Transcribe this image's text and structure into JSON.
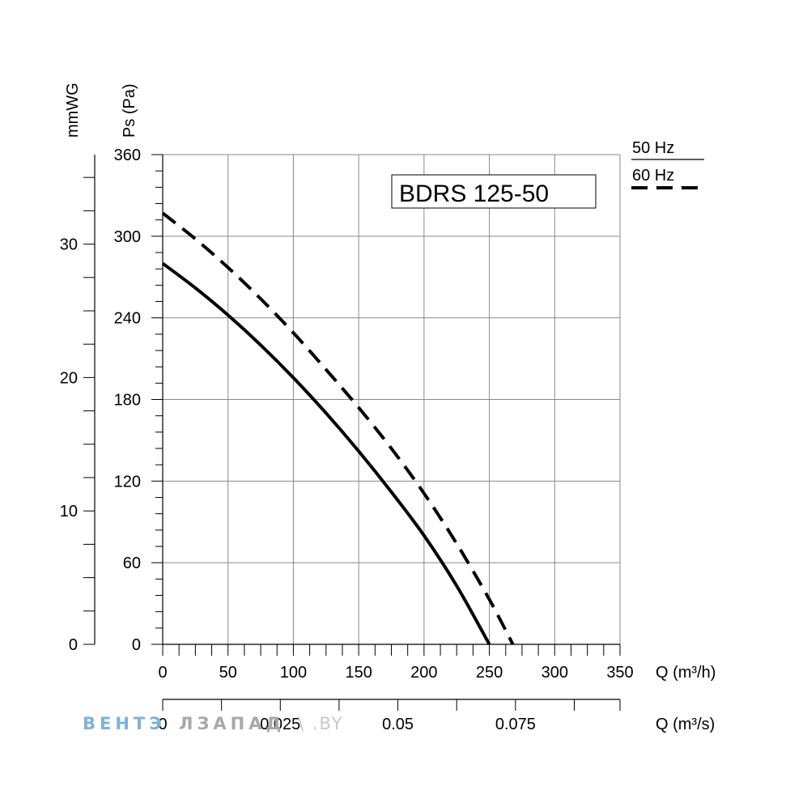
{
  "chart_data": {
    "type": "line",
    "title": "BDRS 125-50",
    "xlabel": "Q (m³/h)",
    "x2label": "Q (m³/s)",
    "ylabel": "Ps (Pa)",
    "y2label": "mmWG",
    "xlim": [
      0,
      350
    ],
    "ylim": [
      0,
      360
    ],
    "x_ticks": [
      0,
      50,
      100,
      150,
      200,
      250,
      300,
      350
    ],
    "y_ticks": [
      0,
      60,
      120,
      180,
      240,
      300,
      360
    ],
    "x2_ticks": [
      0,
      0.025,
      0.05,
      0.075
    ],
    "x2_tick_labels": [
      "0",
      "0.025",
      "0.05",
      "0.075"
    ],
    "y2_ticks": [
      0,
      10,
      20,
      30
    ],
    "grid": true,
    "legend_position": "top-right",
    "series": [
      {
        "name": "50 Hz",
        "style": "solid",
        "x": [
          0,
          25,
          50,
          75,
          100,
          125,
          150,
          175,
          200,
          225,
          250
        ],
        "y": [
          280,
          262,
          242,
          220,
          196,
          170,
          142,
          112,
          80,
          43,
          0
        ]
      },
      {
        "name": "60 Hz",
        "style": "dashed",
        "x": [
          0,
          25,
          50,
          75,
          100,
          125,
          150,
          175,
          200,
          225,
          250,
          268
        ],
        "y": [
          317,
          298,
          277,
          254,
          229,
          202,
          174,
          144,
          111,
          74,
          33,
          0
        ]
      }
    ]
  },
  "watermark": {
    "part1": "ВЕНТЭ",
    "part2": "ЛЗАПАД",
    "part3": "\\ .BY",
    "colors": [
      "#7fb2db",
      "#a8a8a8",
      "#c8c8c8"
    ]
  }
}
